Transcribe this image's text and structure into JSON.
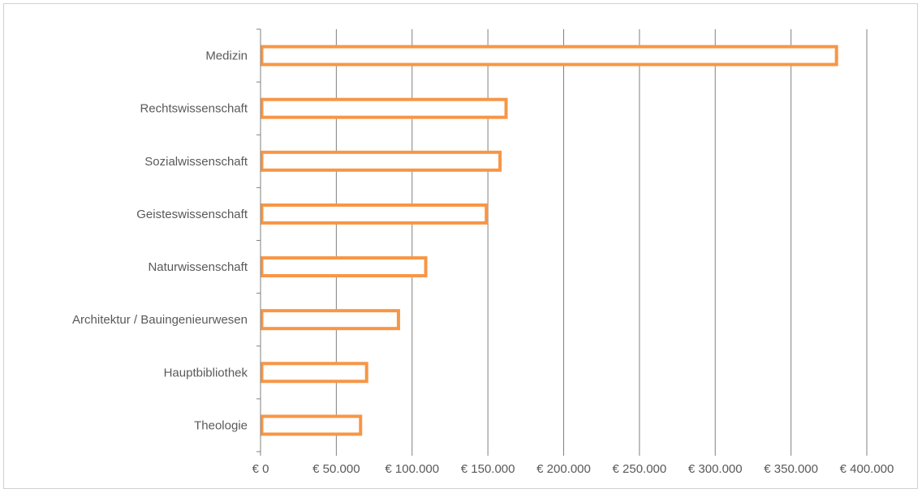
{
  "chart_data": {
    "type": "bar",
    "orientation": "horizontal",
    "title": "",
    "xlabel": "",
    "ylabel": "",
    "categories": [
      "Medizin",
      "Rechtswissenschaft",
      "Sozialwissenschaft",
      "Geisteswissenschaft",
      "Naturwissenschaft",
      "Architektur / Bauingenieurwesen",
      "Hauptbibliothek",
      "Theologie"
    ],
    "values": [
      380000,
      162000,
      158000,
      149000,
      109000,
      91000,
      70000,
      66000
    ],
    "xlim": [
      0,
      400000
    ],
    "x_ticks": [
      0,
      50000,
      100000,
      150000,
      200000,
      250000,
      300000,
      350000,
      400000
    ],
    "x_tick_labels": [
      "€ 0",
      "€ 50.000",
      "€ 100.000",
      "€ 150.000",
      "€ 200.000",
      "€ 250.000",
      "€ 300.000",
      "€ 350.000",
      "€ 400.000"
    ],
    "grid": true,
    "legend": "none",
    "colors": {
      "bar_stroke": "#f79646",
      "bar_fill": "#ffffff",
      "grid": "#808080",
      "axis": "#808080",
      "text": "#595959"
    }
  }
}
